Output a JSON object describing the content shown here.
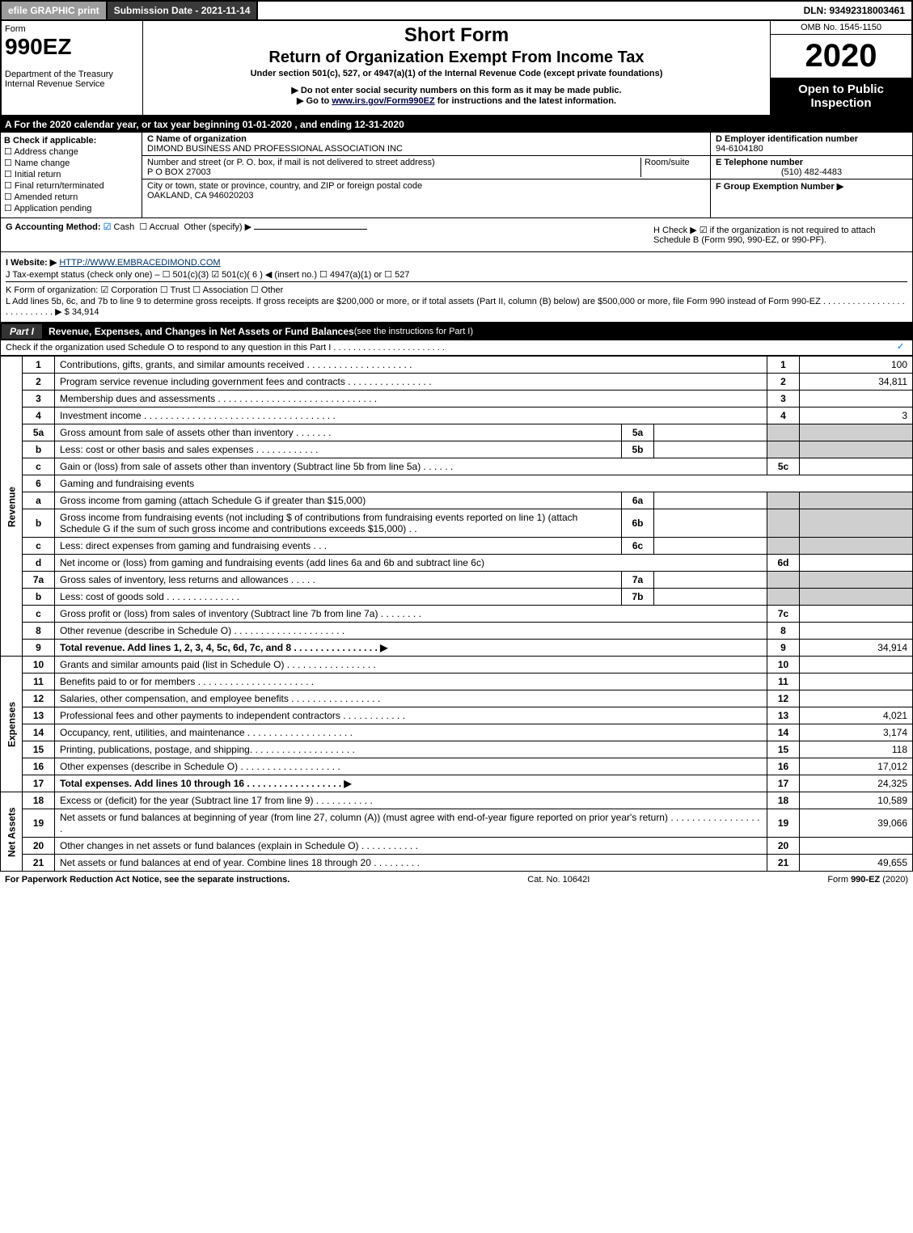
{
  "topbar": {
    "efile": "efile GRAPHIC print",
    "subdate": "Submission Date - 2021-11-14",
    "dln": "DLN: 93492318003461"
  },
  "header": {
    "form": "Form",
    "formnum": "990EZ",
    "dept": "Department of the Treasury\nInternal Revenue Service",
    "title": "Short Form",
    "subtitle": "Return of Organization Exempt From Income Tax",
    "under": "Under section 501(c), 527, or 4947(a)(1) of the Internal Revenue Code (except private foundations)",
    "warn1": "▶ Do not enter social security numbers on this form as it may be made public.",
    "warn2_pre": "▶ Go to ",
    "warn2_link": "www.irs.gov/Form990EZ",
    "warn2_post": " for instructions and the latest information.",
    "omb": "OMB No. 1545-1150",
    "year": "2020",
    "open": "Open to Public Inspection"
  },
  "sectionA": "A For the 2020 calendar year, or tax year beginning 01-01-2020 , and ending 12-31-2020",
  "sectionB": {
    "title": "B  Check if applicable:",
    "items": [
      "Address change",
      "Name change",
      "Initial return",
      "Final return/terminated",
      "Amended return",
      "Application pending"
    ]
  },
  "sectionC": {
    "nameLabel": "C Name of organization",
    "name": "DIMOND BUSINESS AND PROFESSIONAL ASSOCIATION INC",
    "streetLabel": "Number and street (or P. O. box, if mail is not delivered to street address)",
    "roomLabel": "Room/suite",
    "street": "P O BOX 27003",
    "cityLabel": "City or town, state or province, country, and ZIP or foreign postal code",
    "city": "OAKLAND, CA  946020203"
  },
  "sectionD": {
    "einLabel": "D Employer identification number",
    "ein": "94-6104180",
    "telLabel": "E Telephone number",
    "tel": "(510) 482-4483",
    "groupLabel": "F Group Exemption Number  ▶"
  },
  "sectionG": {
    "label": "G Accounting Method:",
    "cash": "Cash",
    "accrual": "Accrual",
    "other": "Other (specify) ▶"
  },
  "sectionH": {
    "text": "H  Check ▶ ☑ if the organization is not required to attach Schedule B (Form 990, 990-EZ, or 990-PF)."
  },
  "sectionI": {
    "label": "I Website: ▶",
    "url": "HTTP://WWW.EMBRACEDIMOND.COM"
  },
  "sectionJ": "J Tax-exempt status (check only one) – ☐ 501(c)(3)  ☑ 501(c)( 6 ) ◀ (insert no.)  ☐ 4947(a)(1) or  ☐ 527",
  "sectionK": "K Form of organization:  ☑ Corporation  ☐ Trust  ☐ Association  ☐ Other",
  "sectionL": "L Add lines 5b, 6c, and 7b to line 9 to determine gross receipts. If gross receipts are $200,000 or more, or if total assets (Part II, column (B) below) are $500,000 or more, file Form 990 instead of Form 990-EZ  .  .  .  .  .  .  .  .  .  .  .  .  .  .  .  .  .  .  .  .  .  .  .  .  .  .  .  ▶ $ 34,914",
  "partI": {
    "part": "Part I",
    "title": "Revenue, Expenses, and Changes in Net Assets or Fund Balances ",
    "sub": "(see the instructions for Part I)",
    "check": "Check if the organization used Schedule O to respond to any question in this Part I  .  .  .  .  .  .  .  .  .  .  .  .  .  .  .  .  .  .  .  .  .  .  ."
  },
  "revenueLabel": "Revenue",
  "expensesLabel": "Expenses",
  "netassetsLabel": "Net Assets",
  "rows": [
    {
      "n": "1",
      "d": "Contributions, gifts, grants, and similar amounts received  .  .  .  .  .  .  .  .  .  .  .  .  .  .  .  .  .  .  .  .",
      "r": "1",
      "a": "100"
    },
    {
      "n": "2",
      "d": "Program service revenue including government fees and contracts  .  .  .  .  .  .  .  .  .  .  .  .  .  .  .  .",
      "r": "2",
      "a": "34,811"
    },
    {
      "n": "3",
      "d": "Membership dues and assessments  .  .  .  .  .  .  .  .  .  .  .  .  .  .  .  .  .  .  .  .  .  .  .  .  .  .  .  .  .  .",
      "r": "3",
      "a": ""
    },
    {
      "n": "4",
      "d": "Investment income  .  .  .  .  .  .  .  .  .  .  .  .  .  .  .  .  .  .  .  .  .  .  .  .  .  .  .  .  .  .  .  .  .  .  .  .",
      "r": "4",
      "a": "3"
    },
    {
      "n": "5a",
      "d": "Gross amount from sale of assets other than inventory  .  .  .  .  .  .  .",
      "sn": "5a",
      "sa": ""
    },
    {
      "n": "b",
      "d": "Less: cost or other basis and sales expenses  .  .  .  .  .  .  .  .  .  .  .  .",
      "sn": "5b",
      "sa": ""
    },
    {
      "n": "c",
      "d": "Gain or (loss) from sale of assets other than inventory (Subtract line 5b from line 5a)  .  .  .  .  .  .",
      "r": "5c",
      "a": ""
    },
    {
      "n": "6",
      "d": "Gaming and fundraising events"
    },
    {
      "n": "a",
      "d": "Gross income from gaming (attach Schedule G if greater than $15,000)",
      "sn": "6a",
      "sa": ""
    },
    {
      "n": "b",
      "d": "Gross income from fundraising events (not including $                    of contributions from fundraising events reported on line 1) (attach Schedule G if the sum of such gross income and contributions exceeds $15,000)     .   .",
      "sn": "6b",
      "sa": ""
    },
    {
      "n": "c",
      "d": "Less: direct expenses from gaming and fundraising events   .   .   .",
      "sn": "6c",
      "sa": ""
    },
    {
      "n": "d",
      "d": "Net income or (loss) from gaming and fundraising events (add lines 6a and 6b and subtract line 6c)",
      "r": "6d",
      "a": ""
    },
    {
      "n": "7a",
      "d": "Gross sales of inventory, less returns and allowances  .   .   .   .   .",
      "sn": "7a",
      "sa": ""
    },
    {
      "n": "b",
      "d": "Less: cost of goods sold             .   .   .   .   .   .   .   .   .   .   .   .   .   .",
      "sn": "7b",
      "sa": ""
    },
    {
      "n": "c",
      "d": "Gross profit or (loss) from sales of inventory (Subtract line 7b from line 7a)  .   .   .   .   .   .   .   .",
      "r": "7c",
      "a": ""
    },
    {
      "n": "8",
      "d": "Other revenue (describe in Schedule O)  .   .   .   .   .   .   .   .   .   .   .   .   .   .   .   .   .   .   .   .   .",
      "r": "8",
      "a": ""
    },
    {
      "n": "9",
      "d": "Total revenue. Add lines 1, 2, 3, 4, 5c, 6d, 7c, and 8   .   .   .   .   .   .   .   .   .   .   .   .   .   .   .   .   ▶",
      "r": "9",
      "a": "34,914",
      "bold": true
    }
  ],
  "expRows": [
    {
      "n": "10",
      "d": "Grants and similar amounts paid (list in Schedule O)  .   .   .   .   .   .   .   .   .   .   .   .   .   .   .   .   .",
      "r": "10",
      "a": ""
    },
    {
      "n": "11",
      "d": "Benefits paid to or for members       .   .   .   .   .   .   .   .   .   .   .   .   .   .   .   .   .   .   .   .   .   .",
      "r": "11",
      "a": ""
    },
    {
      "n": "12",
      "d": "Salaries, other compensation, and employee benefits  .   .   .   .   .   .   .   .   .   .   .   .   .   .   .   .   .",
      "r": "12",
      "a": ""
    },
    {
      "n": "13",
      "d": "Professional fees and other payments to independent contractors  .   .   .   .   .   .   .   .   .   .   .   .",
      "r": "13",
      "a": "4,021"
    },
    {
      "n": "14",
      "d": "Occupancy, rent, utilities, and maintenance  .   .   .   .   .   .   .   .   .   .   .   .   .   .   .   .   .   .   .   .",
      "r": "14",
      "a": "3,174"
    },
    {
      "n": "15",
      "d": "Printing, publications, postage, and shipping.  .   .   .   .   .   .   .   .   .   .   .   .   .   .   .   .   .   .   .",
      "r": "15",
      "a": "118"
    },
    {
      "n": "16",
      "d": "Other expenses (describe in Schedule O)       .   .   .   .   .   .   .   .   .   .   .   .   .   .   .   .   .   .   .",
      "r": "16",
      "a": "17,012"
    },
    {
      "n": "17",
      "d": "Total expenses. Add lines 10 through 16      .   .   .   .   .   .   .   .   .   .   .   .   .   .   .   .   .   .   ▶",
      "r": "17",
      "a": "24,325",
      "bold": true
    }
  ],
  "netRows": [
    {
      "n": "18",
      "d": "Excess or (deficit) for the year (Subtract line 17 from line 9)         .   .   .   .   .   .   .   .   .   .   .",
      "r": "18",
      "a": "10,589"
    },
    {
      "n": "19",
      "d": "Net assets or fund balances at beginning of year (from line 27, column (A)) (must agree with end-of-year figure reported on prior year's return)  .   .   .   .   .   .   .   .   .   .   .   .   .   .   .   .   .   .",
      "r": "19",
      "a": "39,066"
    },
    {
      "n": "20",
      "d": "Other changes in net assets or fund balances (explain in Schedule O)  .   .   .   .   .   .   .   .   .   .   .",
      "r": "20",
      "a": ""
    },
    {
      "n": "21",
      "d": "Net assets or fund balances at end of year. Combine lines 18 through 20  .   .   .   .   .   .   .   .   .",
      "r": "21",
      "a": "49,655"
    }
  ],
  "footer": {
    "left": "For Paperwork Reduction Act Notice, see the separate instructions.",
    "mid": "Cat. No. 10642I",
    "right": "Form 990-EZ (2020)"
  },
  "colors": {
    "black": "#000000",
    "darkgray": "#3a3a3a",
    "gray": "#9c9c9c",
    "shade": "#cfcfcf",
    "check": "#4a90d9"
  }
}
